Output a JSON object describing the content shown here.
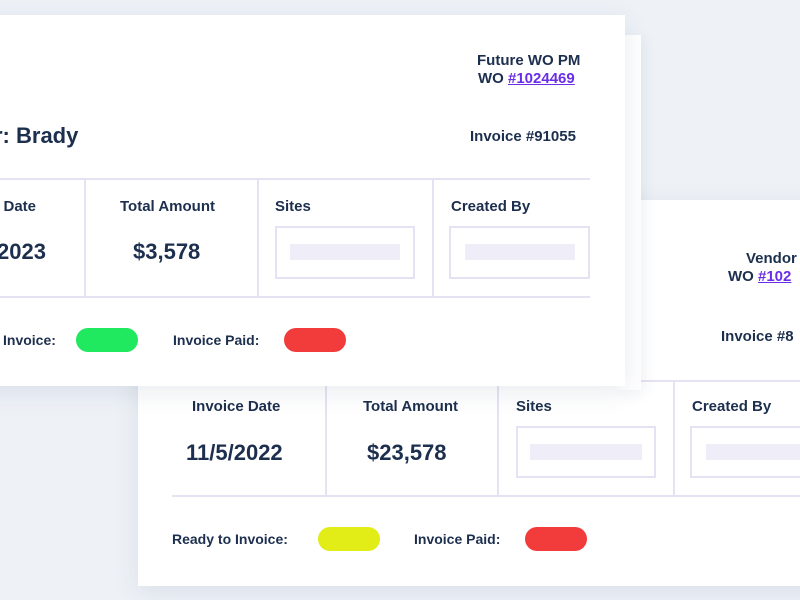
{
  "front_card": {
    "wo_type": "Future WO PM",
    "wo_prefix": "WO ",
    "wo_number": "#1024469",
    "vendor_title": "r: Brady",
    "invoice_number": "Invoice #91055",
    "columns": [
      {
        "label": "e Date",
        "value": "2023"
      },
      {
        "label": "Total Amount",
        "value": "$3,578"
      },
      {
        "label": "Sites",
        "value": ""
      },
      {
        "label": "Created By",
        "value": ""
      }
    ],
    "status": [
      {
        "label": "Invoice:",
        "color": "#20e85f"
      },
      {
        "label": "Invoice Paid:",
        "color": "#f23b3b"
      }
    ]
  },
  "back_card": {
    "wo_type": "Vendor",
    "wo_prefix": "WO ",
    "wo_number": "#102",
    "invoice_number": "Invoice #8",
    "columns": [
      {
        "label": "Invoice Date",
        "value": "11/5/2022"
      },
      {
        "label": "Total Amount",
        "value": "$23,578"
      },
      {
        "label": "Sites",
        "value": ""
      },
      {
        "label": "Created By",
        "value": ""
      }
    ],
    "status": [
      {
        "label": "Ready to Invoice:",
        "color": "#e2ec17"
      },
      {
        "label": "Invoice Paid:",
        "color": "#f23b3b"
      }
    ]
  }
}
